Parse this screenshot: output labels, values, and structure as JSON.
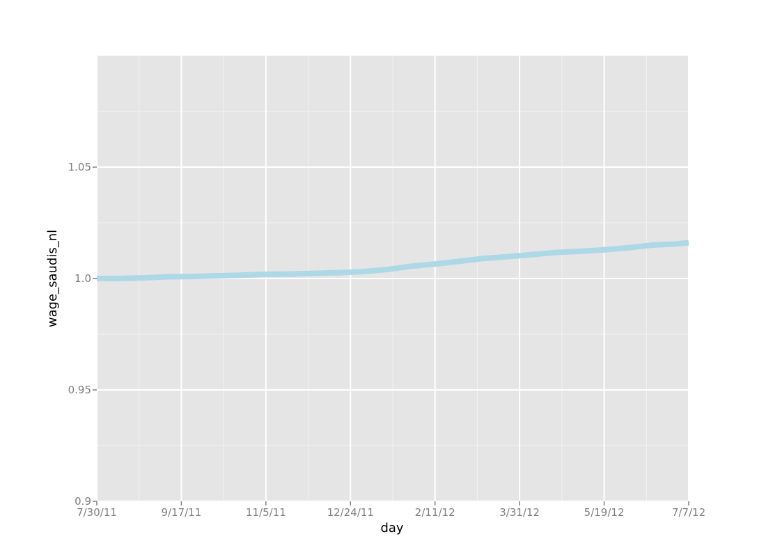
{
  "chart_data": {
    "type": "line",
    "xlabel": "day",
    "ylabel": "wage_saudis_nl",
    "x_is_date": true,
    "xlim": [
      "2011-07-30",
      "2012-07-07"
    ],
    "ylim": [
      0.9,
      1.1
    ],
    "x_ticks": [
      {
        "date": "2011-07-30",
        "label": "7/30/11"
      },
      {
        "date": "2011-09-17",
        "label": "9/17/11"
      },
      {
        "date": "2011-11-05",
        "label": "11/5/11"
      },
      {
        "date": "2011-12-24",
        "label": "12/24/11"
      },
      {
        "date": "2012-02-11",
        "label": "2/11/12"
      },
      {
        "date": "2012-03-31",
        "label": "3/31/12"
      },
      {
        "date": "2012-05-19",
        "label": "5/19/12"
      },
      {
        "date": "2012-07-07",
        "label": "7/7/12"
      }
    ],
    "y_ticks": [
      {
        "value": 0.9,
        "label": "0.9"
      },
      {
        "value": 0.95,
        "label": "0.95"
      },
      {
        "value": 1.0,
        "label": "1.0"
      },
      {
        "value": 1.05,
        "label": "1.05"
      }
    ],
    "grid": true,
    "series": [
      {
        "color": "#add8e6",
        "points": [
          {
            "x": "2011-07-30",
            "y": 1.0
          },
          {
            "x": "2011-08-13",
            "y": 1.0
          },
          {
            "x": "2011-08-27",
            "y": 1.0003
          },
          {
            "x": "2011-09-10",
            "y": 1.0008
          },
          {
            "x": "2011-09-24",
            "y": 1.0009
          },
          {
            "x": "2011-10-08",
            "y": 1.0012
          },
          {
            "x": "2011-10-22",
            "y": 1.0015
          },
          {
            "x": "2011-11-05",
            "y": 1.0019
          },
          {
            "x": "2011-11-19",
            "y": 1.002
          },
          {
            "x": "2011-12-03",
            "y": 1.0023
          },
          {
            "x": "2011-12-17",
            "y": 1.0026
          },
          {
            "x": "2011-12-31",
            "y": 1.0031
          },
          {
            "x": "2012-01-14",
            "y": 1.004
          },
          {
            "x": "2012-01-28",
            "y": 1.0055
          },
          {
            "x": "2012-02-11",
            "y": 1.0065
          },
          {
            "x": "2012-02-25",
            "y": 1.0077
          },
          {
            "x": "2012-03-10",
            "y": 1.009
          },
          {
            "x": "2012-03-24",
            "y": 1.0098
          },
          {
            "x": "2012-04-07",
            "y": 1.0107
          },
          {
            "x": "2012-04-21",
            "y": 1.0117
          },
          {
            "x": "2012-05-05",
            "y": 1.0122
          },
          {
            "x": "2012-05-19",
            "y": 1.0129
          },
          {
            "x": "2012-06-02",
            "y": 1.0138
          },
          {
            "x": "2012-06-16",
            "y": 1.015
          },
          {
            "x": "2012-06-30",
            "y": 1.0155
          },
          {
            "x": "2012-07-07",
            "y": 1.0161
          }
        ]
      }
    ]
  }
}
